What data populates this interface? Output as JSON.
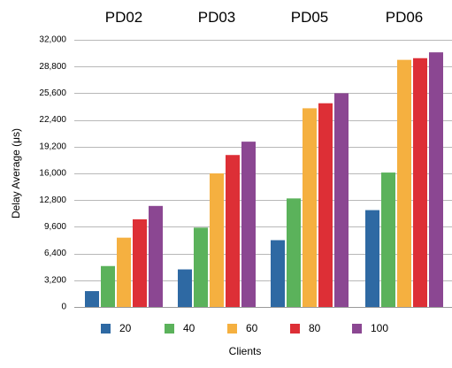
{
  "chart_data": {
    "type": "bar",
    "categories": [
      "PD02",
      "PD03",
      "PD05",
      "PD06"
    ],
    "series": [
      {
        "name": "20",
        "color": "#2e69a3",
        "values": [
          1900,
          4500,
          8000,
          11600
        ]
      },
      {
        "name": "40",
        "color": "#5bb25b",
        "values": [
          4900,
          9500,
          13000,
          16100
        ]
      },
      {
        "name": "60",
        "color": "#f5b040",
        "values": [
          8300,
          16000,
          23800,
          29600
        ]
      },
      {
        "name": "80",
        "color": "#dd2f36",
        "values": [
          10500,
          18200,
          24400,
          29800
        ]
      },
      {
        "name": "100",
        "color": "#8b4792",
        "values": [
          12100,
          19800,
          25600,
          30500
        ]
      }
    ],
    "xlabel": "Clients",
    "ylabel": "Delay Average  (μs)",
    "ylim": [
      0,
      32000
    ],
    "yticks": [
      0,
      3200,
      6400,
      9600,
      12800,
      16000,
      19200,
      22400,
      25600,
      28800,
      32000
    ],
    "ytick_labels": [
      "0",
      "3,200",
      "6,400",
      "9,600",
      "12,800",
      "16,000",
      "19,200",
      "22,400",
      "25,600",
      "28,800",
      "32,000"
    ],
    "grid": true,
    "legend_position": "bottom"
  }
}
